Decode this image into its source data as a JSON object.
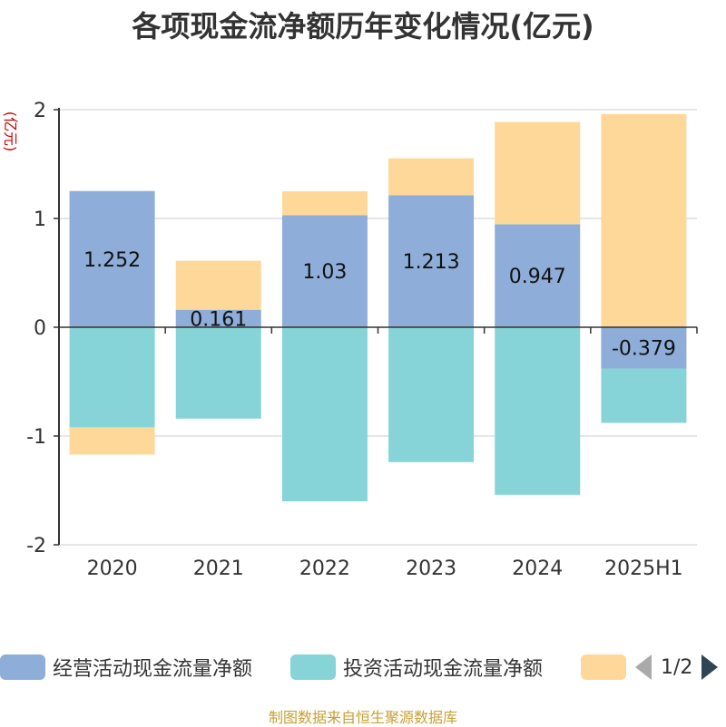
{
  "chart_data": {
    "type": "bar",
    "stacked": true,
    "title": "各项现金流净额历年变化情况(亿元)",
    "ylabel": "(亿元)",
    "categories": [
      "2020",
      "2021",
      "2022",
      "2023",
      "2024",
      "2025H1"
    ],
    "ylim": [
      -2,
      2
    ],
    "yticks": [
      -2,
      -1,
      0,
      1,
      2
    ],
    "grid": true,
    "legend_position": "bottom",
    "series": [
      {
        "name": "经营活动现金流量净额",
        "color": "#8eadd9",
        "values": [
          1.252,
          0.161,
          1.03,
          1.213,
          0.947,
          -0.379
        ],
        "labels": [
          "1.252",
          "0.161",
          "1.03",
          "1.213",
          "0.947",
          "-0.379"
        ]
      },
      {
        "name": "投资活动现金流量净额",
        "color": "#86d4d7",
        "values": [
          -0.92,
          -0.84,
          -1.6,
          -1.24,
          -1.54,
          -0.5
        ]
      },
      {
        "name": "",
        "color": "#fdd899",
        "values": [
          -0.25,
          0.45,
          0.22,
          0.34,
          0.94,
          1.96
        ]
      }
    ]
  },
  "legend": {
    "page_indicator": "1/2"
  },
  "source_note": "制图数据来自恒生聚源数据库"
}
